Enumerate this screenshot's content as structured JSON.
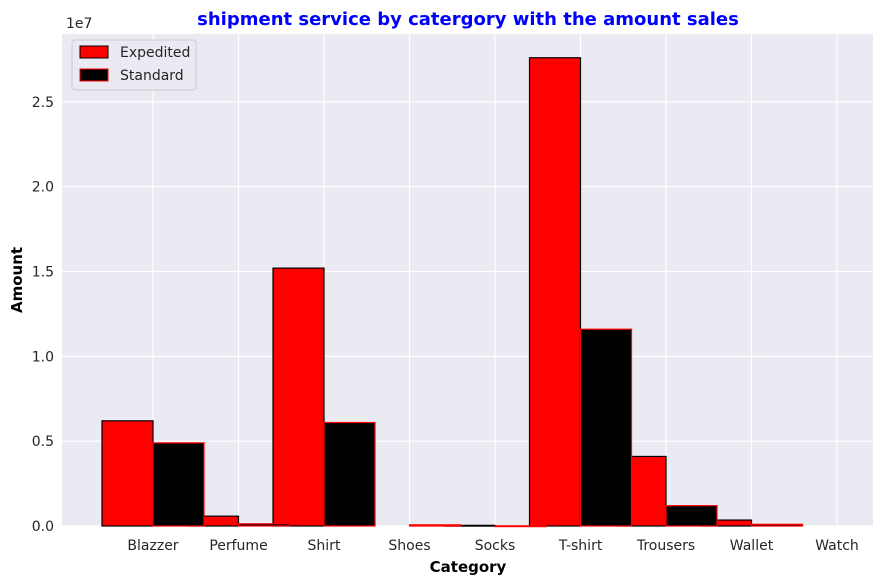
{
  "chart_data": {
    "type": "bar",
    "title": "shipment service by catergory with the amount sales",
    "xlabel": "Category",
    "ylabel": "Amount",
    "y_offset_text": "1e7",
    "ylim": [
      0,
      29000000
    ],
    "grid": true,
    "legend_position": "top-left",
    "categories": [
      "Blazzer",
      "Perfume",
      "Shirt",
      "Shoes",
      "Socks",
      "T-shirt",
      "Trousers",
      "Wallet",
      "Watch"
    ],
    "y_ticks": [
      {
        "value": 0,
        "label": "0.0"
      },
      {
        "value": 5000000,
        "label": "0.5"
      },
      {
        "value": 10000000,
        "label": "1.0"
      },
      {
        "value": 15000000,
        "label": "1.5"
      },
      {
        "value": 20000000,
        "label": "2.0"
      },
      {
        "value": 25000000,
        "label": "2.5"
      }
    ],
    "series": [
      {
        "name": "Expedited",
        "fill": "#ff0000",
        "edge": "#000000",
        "values": [
          6200000,
          580000,
          15200000,
          0,
          40000,
          27600000,
          4100000,
          350000,
          0
        ]
      },
      {
        "name": "Standard",
        "fill": "#000000",
        "edge": "#ff0000",
        "values": [
          4900000,
          130000,
          6100000,
          70000,
          10000,
          11600000,
          1200000,
          100000,
          0
        ]
      }
    ]
  }
}
